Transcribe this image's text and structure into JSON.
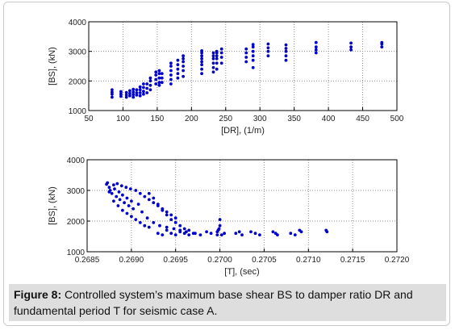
{
  "caption": {
    "label": "Figure 8:",
    "text": " Controlled system’s maximum base shear BS to damper ratio DR and fundamental period T for seismic case A."
  },
  "colors": {
    "points": "#0000cc",
    "grid": "#8c8c8c",
    "axis": "#000000"
  },
  "chart_data": [
    {
      "type": "scatter",
      "xlabel": "[DR], (1/m)",
      "ylabel": "[BS], (kN)",
      "xlim": [
        50,
        500
      ],
      "ylim": [
        1000,
        4000
      ],
      "xticks": [
        "50",
        "100",
        "150",
        "200",
        "250",
        "300",
        "350",
        "400",
        "450",
        "500"
      ],
      "yticks": [
        "1000",
        "2000",
        "3000",
        "4000"
      ],
      "grid": true,
      "points": [
        [
          84,
          1450
        ],
        [
          84,
          1550
        ],
        [
          84,
          1620
        ],
        [
          84,
          1700
        ],
        [
          97,
          1480
        ],
        [
          97,
          1560
        ],
        [
          97,
          1640
        ],
        [
          105,
          1450
        ],
        [
          105,
          1530
        ],
        [
          105,
          1610
        ],
        [
          110,
          1500
        ],
        [
          110,
          1580
        ],
        [
          110,
          1670
        ],
        [
          115,
          1450
        ],
        [
          115,
          1540
        ],
        [
          115,
          1630
        ],
        [
          115,
          1720
        ],
        [
          120,
          1520
        ],
        [
          120,
          1600
        ],
        [
          120,
          1700
        ],
        [
          125,
          1500
        ],
        [
          125,
          1600
        ],
        [
          125,
          1700
        ],
        [
          125,
          1800
        ],
        [
          130,
          1550
        ],
        [
          130,
          1650
        ],
        [
          130,
          1780
        ],
        [
          130,
          1900
        ],
        [
          135,
          1600
        ],
        [
          135,
          1750
        ],
        [
          135,
          1900
        ],
        [
          140,
          1700
        ],
        [
          140,
          1850
        ],
        [
          140,
          2000
        ],
        [
          140,
          2100
        ],
        [
          148,
          1900
        ],
        [
          148,
          2050
        ],
        [
          148,
          2200
        ],
        [
          148,
          2300
        ],
        [
          153,
          1850
        ],
        [
          153,
          1950
        ],
        [
          153,
          2100
        ],
        [
          153,
          2250
        ],
        [
          153,
          2350
        ],
        [
          157,
          1950
        ],
        [
          157,
          2100
        ],
        [
          157,
          2250
        ],
        [
          170,
          1900
        ],
        [
          170,
          2050
        ],
        [
          170,
          2200
        ],
        [
          170,
          2350
        ],
        [
          170,
          2500
        ],
        [
          170,
          2600
        ],
        [
          180,
          2100
        ],
        [
          180,
          2250
        ],
        [
          180,
          2400
        ],
        [
          180,
          2550
        ],
        [
          180,
          2700
        ],
        [
          188,
          2150
        ],
        [
          188,
          2350
        ],
        [
          188,
          2500
        ],
        [
          188,
          2650
        ],
        [
          188,
          2750
        ],
        [
          188,
          2850
        ],
        [
          215,
          2250
        ],
        [
          215,
          2400
        ],
        [
          215,
          2550
        ],
        [
          215,
          2650
        ],
        [
          215,
          2750
        ],
        [
          215,
          2850
        ],
        [
          215,
          2950
        ],
        [
          215,
          3020
        ],
        [
          232,
          2300
        ],
        [
          232,
          2450
        ],
        [
          232,
          2600
        ],
        [
          232,
          2750
        ],
        [
          232,
          2850
        ],
        [
          232,
          2950
        ],
        [
          237,
          2400
        ],
        [
          237,
          2600
        ],
        [
          237,
          2750
        ],
        [
          237,
          2850
        ],
        [
          237,
          2950
        ],
        [
          237,
          3000
        ],
        [
          244,
          2600
        ],
        [
          244,
          2800
        ],
        [
          244,
          2950
        ],
        [
          244,
          3080
        ],
        [
          280,
          2650
        ],
        [
          280,
          2800
        ],
        [
          280,
          2950
        ],
        [
          280,
          3080
        ],
        [
          290,
          2450
        ],
        [
          290,
          2700
        ],
        [
          290,
          2850
        ],
        [
          290,
          3000
        ],
        [
          290,
          3150
        ],
        [
          290,
          3230
        ],
        [
          312,
          2850
        ],
        [
          312,
          3000
        ],
        [
          312,
          3120
        ],
        [
          312,
          3250
        ],
        [
          338,
          2700
        ],
        [
          338,
          2850
        ],
        [
          338,
          3000
        ],
        [
          338,
          3100
        ],
        [
          338,
          3220
        ],
        [
          382,
          2950
        ],
        [
          382,
          3050
        ],
        [
          382,
          3150
        ],
        [
          382,
          3300
        ],
        [
          433,
          3050
        ],
        [
          433,
          3150
        ],
        [
          433,
          3280
        ],
        [
          478,
          3150
        ],
        [
          478,
          3250
        ],
        [
          478,
          3300
        ]
      ]
    },
    {
      "type": "scatter",
      "xlabel": "[T], (sec)",
      "ylabel": "[BS], (kN)",
      "xlim": [
        0.2685,
        0.272
      ],
      "ylim": [
        1000,
        4000
      ],
      "xticks": [
        "0.2685",
        "0.2690",
        "0.2695",
        "0.2700",
        "0.2705",
        "0.2710",
        "0.2715",
        "0.2720"
      ],
      "yticks": [
        "1000",
        "2000",
        "3000",
        "4000"
      ],
      "grid": true,
      "points": [
        [
          0.26872,
          3200
        ],
        [
          0.26873,
          3250
        ],
        [
          0.26875,
          3100
        ],
        [
          0.26876,
          3000
        ],
        [
          0.26878,
          2900
        ],
        [
          0.2688,
          3180
        ],
        [
          0.26881,
          3050
        ],
        [
          0.26883,
          2800
        ],
        [
          0.26884,
          3220
        ],
        [
          0.26886,
          2950
        ],
        [
          0.26887,
          2700
        ],
        [
          0.26889,
          3150
        ],
        [
          0.2689,
          2850
        ],
        [
          0.26892,
          2600
        ],
        [
          0.26894,
          3100
        ],
        [
          0.26895,
          2750
        ],
        [
          0.26897,
          2500
        ],
        [
          0.26899,
          3050
        ],
        [
          0.269,
          2650
        ],
        [
          0.26902,
          2400
        ],
        [
          0.26875,
          2950
        ],
        [
          0.2688,
          2650
        ],
        [
          0.26885,
          2500
        ],
        [
          0.2689,
          2350
        ],
        [
          0.26895,
          2250
        ],
        [
          0.269,
          2150
        ],
        [
          0.26905,
          2050
        ],
        [
          0.2691,
          1950
        ],
        [
          0.26915,
          1850
        ],
        [
          0.2692,
          1800
        ],
        [
          0.26905,
          3000
        ],
        [
          0.2691,
          2900
        ],
        [
          0.26915,
          2800
        ],
        [
          0.2692,
          2700
        ],
        [
          0.26925,
          2600
        ],
        [
          0.2693,
          2500
        ],
        [
          0.26935,
          2400
        ],
        [
          0.2694,
          2300
        ],
        [
          0.26945,
          2200
        ],
        [
          0.2695,
          2100
        ],
        [
          0.26908,
          2550
        ],
        [
          0.26912,
          2300
        ],
        [
          0.26918,
          2100
        ],
        [
          0.26925,
          1950
        ],
        [
          0.26932,
          1850
        ],
        [
          0.2694,
          1800
        ],
        [
          0.26948,
          1750
        ],
        [
          0.26955,
          1700
        ],
        [
          0.26962,
          1650
        ],
        [
          0.2697,
          1600
        ],
        [
          0.2692,
          2900
        ],
        [
          0.26925,
          2750
        ],
        [
          0.2693,
          2550
        ],
        [
          0.26935,
          2350
        ],
        [
          0.2694,
          2200
        ],
        [
          0.26945,
          2050
        ],
        [
          0.2695,
          1950
        ],
        [
          0.26955,
          1850
        ],
        [
          0.2696,
          1750
        ],
        [
          0.26965,
          1700
        ],
        [
          0.2693,
          1600
        ],
        [
          0.26935,
          1550
        ],
        [
          0.2694,
          1700
        ],
        [
          0.26945,
          1600
        ],
        [
          0.2695,
          1550
        ],
        [
          0.26955,
          1650
        ],
        [
          0.2696,
          1600
        ],
        [
          0.26965,
          1550
        ],
        [
          0.26972,
          1600
        ],
        [
          0.26978,
          1550
        ],
        [
          0.26985,
          1650
        ],
        [
          0.2699,
          1600
        ],
        [
          0.26997,
          1550
        ],
        [
          0.26997,
          1650
        ],
        [
          0.26998,
          1700
        ],
        [
          0.26999,
          1750
        ],
        [
          0.27,
          2050
        ],
        [
          0.27,
          1850
        ],
        [
          0.27002,
          1550
        ],
        [
          0.27005,
          1600
        ],
        [
          0.27018,
          1600
        ],
        [
          0.27022,
          1650
        ],
        [
          0.27025,
          1550
        ],
        [
          0.27035,
          1650
        ],
        [
          0.2704,
          1600
        ],
        [
          0.27045,
          1550
        ],
        [
          0.2706,
          1650
        ],
        [
          0.27063,
          1600
        ],
        [
          0.27065,
          1550
        ],
        [
          0.2708,
          1600
        ],
        [
          0.27085,
          1550
        ],
        [
          0.2709,
          1700
        ],
        [
          0.27092,
          1650
        ],
        [
          0.2712,
          1700
        ],
        [
          0.27121,
          1650
        ]
      ]
    }
  ]
}
